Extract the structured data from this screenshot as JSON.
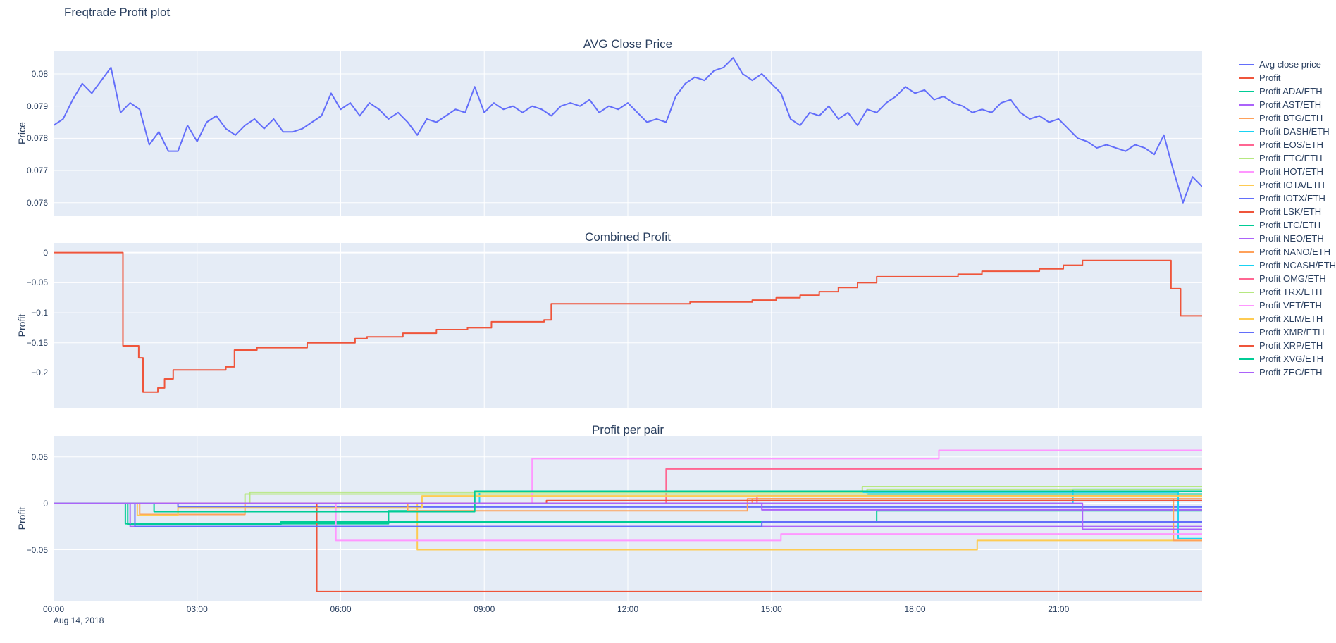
{
  "figure": {
    "title": "Freqtrade Profit plot"
  },
  "colors": {
    "plot_bg": "#E5ECF6",
    "paper_bg": "#FFFFFF",
    "grid": "#FFFFFF",
    "text": "#2a3f5f"
  },
  "xaxis": {
    "ticks": [
      0,
      3,
      6,
      9,
      12,
      15,
      18,
      21
    ],
    "tick_labels": [
      "00:00",
      "03:00",
      "06:00",
      "09:00",
      "12:00",
      "15:00",
      "18:00",
      "21:00"
    ],
    "date_label": "Aug 14, 2018"
  },
  "legend": {
    "items": [
      {
        "label": "Avg close price",
        "color": "#636EFA"
      },
      {
        "label": "Profit",
        "color": "#EF553B"
      },
      {
        "label": "Profit ADA/ETH",
        "color": "#00CC96"
      },
      {
        "label": "Profit AST/ETH",
        "color": "#AB63FA"
      },
      {
        "label": "Profit BTG/ETH",
        "color": "#FFA15A"
      },
      {
        "label": "Profit DASH/ETH",
        "color": "#19D3F3"
      },
      {
        "label": "Profit EOS/ETH",
        "color": "#FF6692"
      },
      {
        "label": "Profit ETC/ETH",
        "color": "#B6E880"
      },
      {
        "label": "Profit HOT/ETH",
        "color": "#FF97FF"
      },
      {
        "label": "Profit IOTA/ETH",
        "color": "#FECB52"
      },
      {
        "label": "Profit IOTX/ETH",
        "color": "#636EFA"
      },
      {
        "label": "Profit LSK/ETH",
        "color": "#EF553B"
      },
      {
        "label": "Profit LTC/ETH",
        "color": "#00CC96"
      },
      {
        "label": "Profit NEO/ETH",
        "color": "#AB63FA"
      },
      {
        "label": "Profit NANO/ETH",
        "color": "#FFA15A"
      },
      {
        "label": "Profit NCASH/ETH",
        "color": "#19D3F3"
      },
      {
        "label": "Profit OMG/ETH",
        "color": "#FF6692"
      },
      {
        "label": "Profit TRX/ETH",
        "color": "#B6E880"
      },
      {
        "label": "Profit VET/ETH",
        "color": "#FF97FF"
      },
      {
        "label": "Profit XLM/ETH",
        "color": "#FECB52"
      },
      {
        "label": "Profit XMR/ETH",
        "color": "#636EFA"
      },
      {
        "label": "Profit XRP/ETH",
        "color": "#EF553B"
      },
      {
        "label": "Profit XVG/ETH",
        "color": "#00CC96"
      },
      {
        "label": "Profit ZEC/ETH",
        "color": "#AB63FA"
      }
    ]
  },
  "chart_data": [
    {
      "type": "line",
      "title": "AVG Close Price",
      "ylabel": "Price",
      "xlabel": "",
      "xlim": [
        0,
        24
      ],
      "ylim": [
        0.0756,
        0.0807
      ],
      "yticks": [
        0.076,
        0.077,
        0.078,
        0.079,
        0.08
      ],
      "ytick_labels": [
        "0.076",
        "0.077",
        "0.078",
        "0.079",
        "0.08"
      ],
      "xticks": [
        0,
        3,
        6,
        9,
        12,
        15,
        18,
        21
      ],
      "grid": true,
      "legend_position": "right",
      "series": [
        {
          "name": "Avg close price",
          "color": "#636EFA",
          "step": false,
          "x0": 0,
          "dx": 0.2,
          "y": [
            0.0784,
            0.0786,
            0.0792,
            0.0797,
            0.0794,
            0.0798,
            0.0802,
            0.0788,
            0.0791,
            0.0789,
            0.0778,
            0.0782,
            0.0776,
            0.0776,
            0.0784,
            0.0779,
            0.0785,
            0.0787,
            0.0783,
            0.0781,
            0.0784,
            0.0786,
            0.0783,
            0.0786,
            0.0782,
            0.0782,
            0.0783,
            0.0785,
            0.0787,
            0.0794,
            0.0789,
            0.0791,
            0.0787,
            0.0791,
            0.0789,
            0.0786,
            0.0788,
            0.0785,
            0.0781,
            0.0786,
            0.0785,
            0.0787,
            0.0789,
            0.0788,
            0.0796,
            0.0788,
            0.0791,
            0.0789,
            0.079,
            0.0788,
            0.079,
            0.0789,
            0.0787,
            0.079,
            0.0791,
            0.079,
            0.0792,
            0.0788,
            0.079,
            0.0789,
            0.0791,
            0.0788,
            0.0785,
            0.0786,
            0.0785,
            0.0793,
            0.0797,
            0.0799,
            0.0798,
            0.0801,
            0.0802,
            0.0805,
            0.08,
            0.0798,
            0.08,
            0.0797,
            0.0794,
            0.0786,
            0.0784,
            0.0788,
            0.0787,
            0.079,
            0.0786,
            0.0788,
            0.0784,
            0.0789,
            0.0788,
            0.0791,
            0.0793,
            0.0796,
            0.0794,
            0.0795,
            0.0792,
            0.0793,
            0.0791,
            0.079,
            0.0788,
            0.0789,
            0.0788,
            0.0791,
            0.0792,
            0.0788,
            0.0786,
            0.0787,
            0.0785,
            0.0786,
            0.0783,
            0.078,
            0.0779,
            0.0777,
            0.0778,
            0.0777,
            0.0776,
            0.0778,
            0.0777,
            0.0775,
            0.0781,
            0.077,
            0.076,
            0.0768,
            0.0765
          ]
        }
      ]
    },
    {
      "type": "line",
      "title": "Combined Profit",
      "ylabel": "Profit",
      "xlabel": "",
      "xlim": [
        0,
        24
      ],
      "ylim": [
        -0.258,
        0.016
      ],
      "yticks": [
        0,
        -0.05,
        -0.1,
        -0.15,
        -0.2
      ],
      "ytick_labels": [
        "0",
        "−0.05",
        "−0.1",
        "−0.15",
        "−0.2"
      ],
      "xticks": [
        0,
        3,
        6,
        9,
        12,
        15,
        18,
        21
      ],
      "zeroline": 0,
      "grid": true,
      "series": [
        {
          "name": "Profit",
          "color": "#EF553B",
          "step": true,
          "x": [
            0,
            1.45,
            1.78,
            1.87,
            2.18,
            2.32,
            2.5,
            3.6,
            3.78,
            4.25,
            5.3,
            6.3,
            6.55,
            7.3,
            8.0,
            8.65,
            9.15,
            10.25,
            10.4,
            13.3,
            14.6,
            15.1,
            15.6,
            16.0,
            16.4,
            16.8,
            17.2,
            18.9,
            19.4,
            20.6,
            21.1,
            21.5,
            23.35,
            23.55,
            24
          ],
          "y": [
            0,
            -0.155,
            -0.175,
            -0.232,
            -0.225,
            -0.21,
            -0.195,
            -0.19,
            -0.162,
            -0.158,
            -0.15,
            -0.143,
            -0.14,
            -0.134,
            -0.128,
            -0.125,
            -0.115,
            -0.112,
            -0.085,
            -0.082,
            -0.079,
            -0.075,
            -0.071,
            -0.065,
            -0.058,
            -0.05,
            -0.04,
            -0.036,
            -0.031,
            -0.027,
            -0.021,
            -0.013,
            -0.06,
            -0.105,
            -0.105
          ]
        }
      ]
    },
    {
      "type": "line",
      "title": "Profit per pair",
      "ylabel": "Profit",
      "xlabel": "",
      "xlim": [
        0,
        24
      ],
      "ylim": [
        -0.105,
        0.0726
      ],
      "yticks": [
        0.05,
        0,
        -0.05
      ],
      "ytick_labels": [
        "0.05",
        "0",
        "−0.05"
      ],
      "xticks": [
        0,
        3,
        6,
        9,
        12,
        15,
        18,
        21
      ],
      "xtick_labels": [
        "00:00",
        "03:00",
        "06:00",
        "09:00",
        "12:00",
        "15:00",
        "18:00",
        "21:00"
      ],
      "zeroline": 0,
      "grid": true,
      "series": [
        {
          "name": "Profit ADA/ETH",
          "color": "#00CC96",
          "step": true,
          "x": [
            0,
            1.5,
            7.0,
            8.8,
            24
          ],
          "y": [
            0,
            -0.022,
            -0.008,
            0.01,
            0.01
          ]
        },
        {
          "name": "Profit AST/ETH",
          "color": "#AB63FA",
          "step": true,
          "x": [
            0,
            1.6,
            24
          ],
          "y": [
            0,
            -0.025,
            -0.025
          ]
        },
        {
          "name": "Profit BTG/ETH",
          "color": "#FFA15A",
          "step": true,
          "x": [
            0,
            1.8,
            4.0,
            14.6,
            24
          ],
          "y": [
            0,
            -0.012,
            0,
            0.005,
            0.005
          ]
        },
        {
          "name": "Profit DASH/ETH",
          "color": "#19D3F3",
          "step": true,
          "x": [
            0,
            21.3,
            24
          ],
          "y": [
            0,
            0.015,
            0.015
          ]
        },
        {
          "name": "Profit EOS/ETH",
          "color": "#FF6692",
          "step": true,
          "x": [
            0,
            12.8,
            24
          ],
          "y": [
            0,
            0.037,
            0.037
          ]
        },
        {
          "name": "Profit ETC/ETH",
          "color": "#B6E880",
          "step": true,
          "x": [
            0,
            4.0,
            17.0,
            24
          ],
          "y": [
            0,
            0.01,
            0.015,
            0.015
          ]
        },
        {
          "name": "Profit HOT/ETH",
          "color": "#FF97FF",
          "step": true,
          "x": [
            0,
            10.0,
            18.5,
            24
          ],
          "y": [
            0,
            0.048,
            0.057,
            0.057
          ]
        },
        {
          "name": "Profit IOTA/ETH",
          "color": "#FECB52",
          "step": true,
          "x": [
            0,
            7.6,
            19.3,
            24
          ],
          "y": [
            0,
            -0.05,
            -0.04,
            -0.04
          ]
        },
        {
          "name": "Profit IOTX/ETH",
          "color": "#636EFA",
          "step": true,
          "x": [
            0,
            2.6,
            24
          ],
          "y": [
            0,
            -0.004,
            -0.004
          ]
        },
        {
          "name": "Profit LSK/ETH",
          "color": "#EF553B",
          "step": true,
          "x": [
            0,
            5.5,
            24
          ],
          "y": [
            0,
            -0.095,
            -0.095
          ]
        },
        {
          "name": "Profit LTC/ETH",
          "color": "#00CC96",
          "step": true,
          "x": [
            0,
            1.55,
            4.75,
            17.2,
            24
          ],
          "y": [
            0,
            -0.023,
            -0.02,
            -0.008,
            -0.008
          ]
        },
        {
          "name": "Profit NEO/ETH",
          "color": "#AB63FA",
          "step": true,
          "x": [
            0,
            14.8,
            24
          ],
          "y": [
            0,
            -0.007,
            -0.007
          ]
        },
        {
          "name": "Profit NANO/ETH",
          "color": "#FFA15A",
          "step": true,
          "x": [
            0,
            7.4,
            14.5,
            23.4,
            24
          ],
          "y": [
            0,
            -0.008,
            0.005,
            -0.04,
            -0.04
          ]
        },
        {
          "name": "Profit NCASH/ETH",
          "color": "#19D3F3",
          "step": true,
          "x": [
            0,
            8.9,
            23.5,
            24
          ],
          "y": [
            0,
            0.012,
            -0.038,
            -0.038
          ]
        },
        {
          "name": "Profit OMG/ETH",
          "color": "#FF6692",
          "step": true,
          "x": [
            0,
            14.7,
            24
          ],
          "y": [
            0,
            0.008,
            0.008
          ]
        },
        {
          "name": "Profit TRX/ETH",
          "color": "#B6E880",
          "step": true,
          "x": [
            0,
            4.1,
            16.9,
            24
          ],
          "y": [
            0,
            0.012,
            0.018,
            0.018
          ]
        },
        {
          "name": "Profit VET/ETH",
          "color": "#FF97FF",
          "step": true,
          "x": [
            0,
            5.9,
            15.2,
            24
          ],
          "y": [
            0,
            -0.04,
            -0.033,
            -0.033
          ]
        },
        {
          "name": "Profit XLM/ETH",
          "color": "#FECB52",
          "step": true,
          "x": [
            0,
            1.75,
            2.6,
            7.7,
            24
          ],
          "y": [
            0,
            -0.013,
            -0.005,
            0.008,
            0.008
          ]
        },
        {
          "name": "Profit XMR/ETH",
          "color": "#636EFA",
          "step": true,
          "x": [
            0,
            1.7,
            14.8,
            24
          ],
          "y": [
            0,
            -0.025,
            -0.02,
            -0.02
          ]
        },
        {
          "name": "Profit XRP/ETH",
          "color": "#EF553B",
          "step": true,
          "x": [
            0,
            10.3,
            24
          ],
          "y": [
            0,
            0.003,
            0.003
          ]
        },
        {
          "name": "Profit XVG/ETH",
          "color": "#00CC96",
          "step": true,
          "x": [
            0,
            2.1,
            8.8,
            24
          ],
          "y": [
            0,
            -0.009,
            0.013,
            0.013
          ]
        },
        {
          "name": "Profit ZEC/ETH",
          "color": "#AB63FA",
          "step": true,
          "x": [
            0,
            21.5,
            24
          ],
          "y": [
            0,
            -0.028,
            -0.028
          ]
        }
      ]
    }
  ]
}
